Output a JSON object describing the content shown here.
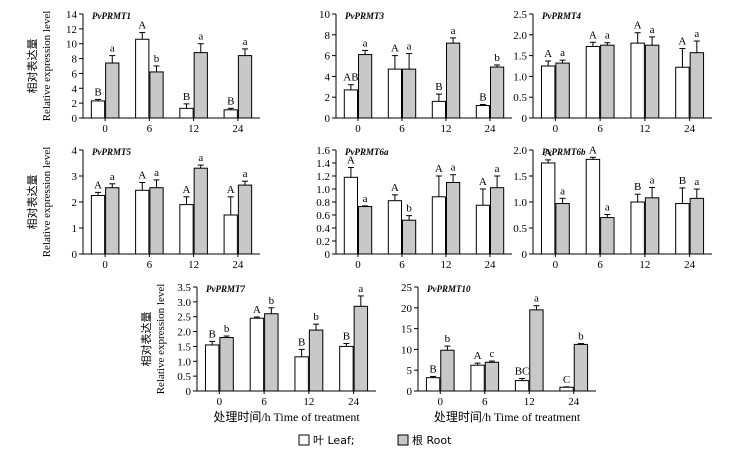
{
  "chart_data": [
    {
      "type": "bar",
      "title": "PvPRMT1",
      "categories": [
        "0",
        "6",
        "12",
        "24"
      ],
      "ylim": [
        0,
        14
      ],
      "yticks": [
        "0",
        "2",
        "4",
        "6",
        "8",
        "10",
        "12",
        "14"
      ],
      "ylabel_cn": "相对表达量",
      "ylabel": "Relative expression level",
      "series": [
        {
          "name": "叶 Leaf",
          "values": [
            2.3,
            10.6,
            1.3,
            1.1
          ],
          "errors": [
            0.2,
            0.9,
            0.6,
            0.2
          ],
          "letters": [
            "B",
            "A",
            "B",
            "B"
          ]
        },
        {
          "name": "根 Root",
          "values": [
            7.4,
            6.2,
            8.8,
            8.4
          ],
          "errors": [
            1.0,
            0.8,
            1.2,
            0.9
          ],
          "letters": [
            "a",
            "b",
            "a",
            "a"
          ]
        }
      ]
    },
    {
      "type": "bar",
      "title": "PvPRMT3",
      "categories": [
        "0",
        "6",
        "12",
        "24"
      ],
      "ylim": [
        0,
        10
      ],
      "yticks": [
        "0",
        "2",
        "4",
        "6",
        "8",
        "10"
      ],
      "ylabel_cn": "",
      "ylabel": "",
      "series": [
        {
          "name": "叶 Leaf",
          "values": [
            2.7,
            4.7,
            1.6,
            1.2
          ],
          "errors": [
            0.5,
            1.3,
            0.7,
            0.1
          ],
          "letters": [
            "AB",
            "A",
            "B",
            "B"
          ]
        },
        {
          "name": "根 Root",
          "values": [
            6.1,
            4.7,
            7.2,
            4.9
          ],
          "errors": [
            0.4,
            1.5,
            0.5,
            0.2
          ],
          "letters": [
            "a",
            "a",
            "a",
            "b"
          ]
        }
      ]
    },
    {
      "type": "bar",
      "title": "PvPRMT4",
      "categories": [
        "0",
        "6",
        "12",
        "24"
      ],
      "ylim": [
        0,
        2.5
      ],
      "yticks": [
        "0",
        "0.5",
        "1.0",
        "1.5",
        "2.0",
        "2.5"
      ],
      "ylabel_cn": "",
      "ylabel": "",
      "series": [
        {
          "name": "叶 Leaf",
          "values": [
            1.25,
            1.72,
            1.8,
            1.22
          ],
          "errors": [
            0.12,
            0.1,
            0.25,
            0.45
          ],
          "letters": [
            "A",
            "A",
            "A",
            "A"
          ]
        },
        {
          "name": "根 Root",
          "values": [
            1.32,
            1.75,
            1.75,
            1.57
          ],
          "errors": [
            0.07,
            0.06,
            0.2,
            0.28
          ],
          "letters": [
            "a",
            "a",
            "a",
            "a"
          ]
        }
      ]
    },
    {
      "type": "bar",
      "title": "PvPRMT5",
      "categories": [
        "0",
        "6",
        "12",
        "24"
      ],
      "ylim": [
        0,
        4
      ],
      "yticks": [
        "0",
        "1",
        "2",
        "3",
        "4"
      ],
      "ylabel_cn": "相对表达量",
      "ylabel": "Relative expression level",
      "series": [
        {
          "name": "叶 Leaf",
          "values": [
            2.25,
            2.45,
            1.9,
            1.5
          ],
          "errors": [
            0.12,
            0.3,
            0.3,
            0.7
          ],
          "letters": [
            "A",
            "A",
            "A",
            "A"
          ]
        },
        {
          "name": "根 Root",
          "values": [
            2.55,
            2.55,
            3.3,
            2.65
          ],
          "errors": [
            0.15,
            0.3,
            0.12,
            0.15
          ],
          "letters": [
            "a",
            "a",
            "a",
            "a"
          ]
        }
      ]
    },
    {
      "type": "bar",
      "title": "PvPRMT6a",
      "categories": [
        "0",
        "6",
        "12",
        "24"
      ],
      "ylim": [
        0,
        1.6
      ],
      "yticks": [
        "0",
        "0.2",
        "0.4",
        "0.6",
        "0.8",
        "1.0",
        "1.2",
        "1.4",
        "1.6"
      ],
      "ylabel_cn": "",
      "ylabel": "",
      "series": [
        {
          "name": "叶 Leaf",
          "values": [
            1.18,
            0.82,
            0.88,
            0.75
          ],
          "errors": [
            0.15,
            0.09,
            0.32,
            0.25
          ],
          "letters": [
            "A",
            "A",
            "A",
            "A"
          ]
        },
        {
          "name": "根 Root",
          "values": [
            0.73,
            0.52,
            1.1,
            1.02
          ],
          "errors": [
            0.01,
            0.07,
            0.12,
            0.18
          ],
          "letters": [
            "a",
            "b",
            "a",
            "a"
          ]
        }
      ]
    },
    {
      "type": "bar",
      "title": "PvPRMT6b",
      "categories": [
        "0",
        "6",
        "12",
        "24"
      ],
      "ylim": [
        0,
        2.0
      ],
      "yticks": [
        "0",
        "0.5",
        "1.0",
        "1.5",
        "2.0"
      ],
      "ylabel_cn": "",
      "ylabel": "",
      "series": [
        {
          "name": "叶 Leaf",
          "values": [
            1.75,
            1.82,
            1.0,
            0.97
          ],
          "errors": [
            0.06,
            0.04,
            0.15,
            0.3
          ],
          "letters": [
            "A",
            "A",
            "B",
            "B"
          ]
        },
        {
          "name": "根 Root",
          "values": [
            0.97,
            0.7,
            1.08,
            1.07
          ],
          "errors": [
            0.1,
            0.06,
            0.2,
            0.18
          ],
          "letters": [
            "a",
            "a",
            "a",
            "a"
          ]
        }
      ]
    },
    {
      "type": "bar",
      "title": "PvPRMT7",
      "categories": [
        "0",
        "6",
        "12",
        "24"
      ],
      "ylim": [
        0,
        3.5
      ],
      "yticks": [
        "0",
        "0.5",
        "1.0",
        "1.5",
        "2.0",
        "2.5",
        "3.0",
        "3.5"
      ],
      "ylabel_cn": "相对表达量",
      "ylabel": "Relative expression level",
      "xlabel": "处理时间/h   Time of treatment",
      "series": [
        {
          "name": "叶 Leaf",
          "values": [
            1.55,
            2.45,
            1.15,
            1.5
          ],
          "errors": [
            0.12,
            0.04,
            0.25,
            0.1
          ],
          "letters": [
            "B",
            "A",
            "B",
            "B"
          ]
        },
        {
          "name": "根 Root",
          "values": [
            1.8,
            2.6,
            2.05,
            2.85
          ],
          "errors": [
            0.05,
            0.2,
            0.2,
            0.35
          ],
          "letters": [
            "b",
            "b",
            "b",
            "a"
          ]
        }
      ]
    },
    {
      "type": "bar",
      "title": "PvPRMT10",
      "categories": [
        "0",
        "6",
        "12",
        "24"
      ],
      "ylim": [
        0,
        25
      ],
      "yticks": [
        "0",
        "5",
        "10",
        "15",
        "20",
        "25"
      ],
      "ylabel_cn": "",
      "ylabel": "",
      "xlabel": "处理时间/h   Time of treatment",
      "series": [
        {
          "name": "叶 Leaf",
          "values": [
            3.2,
            6.2,
            2.5,
            0.9
          ],
          "errors": [
            0.3,
            0.5,
            0.5,
            0.1
          ],
          "letters": [
            "B",
            "A",
            "BC",
            "C"
          ]
        },
        {
          "name": "根 Root",
          "values": [
            9.8,
            6.9,
            19.5,
            11.2
          ],
          "errors": [
            1.0,
            0.3,
            1.0,
            0.2
          ],
          "letters": [
            "b",
            "c",
            "a",
            "b"
          ]
        }
      ]
    }
  ],
  "legend": {
    "leaf": "叶 Leaf;",
    "root": "根 Root"
  },
  "colors": {
    "leaf": "#ffffff",
    "root": "#c8c8c8",
    "stroke": "#000000"
  }
}
